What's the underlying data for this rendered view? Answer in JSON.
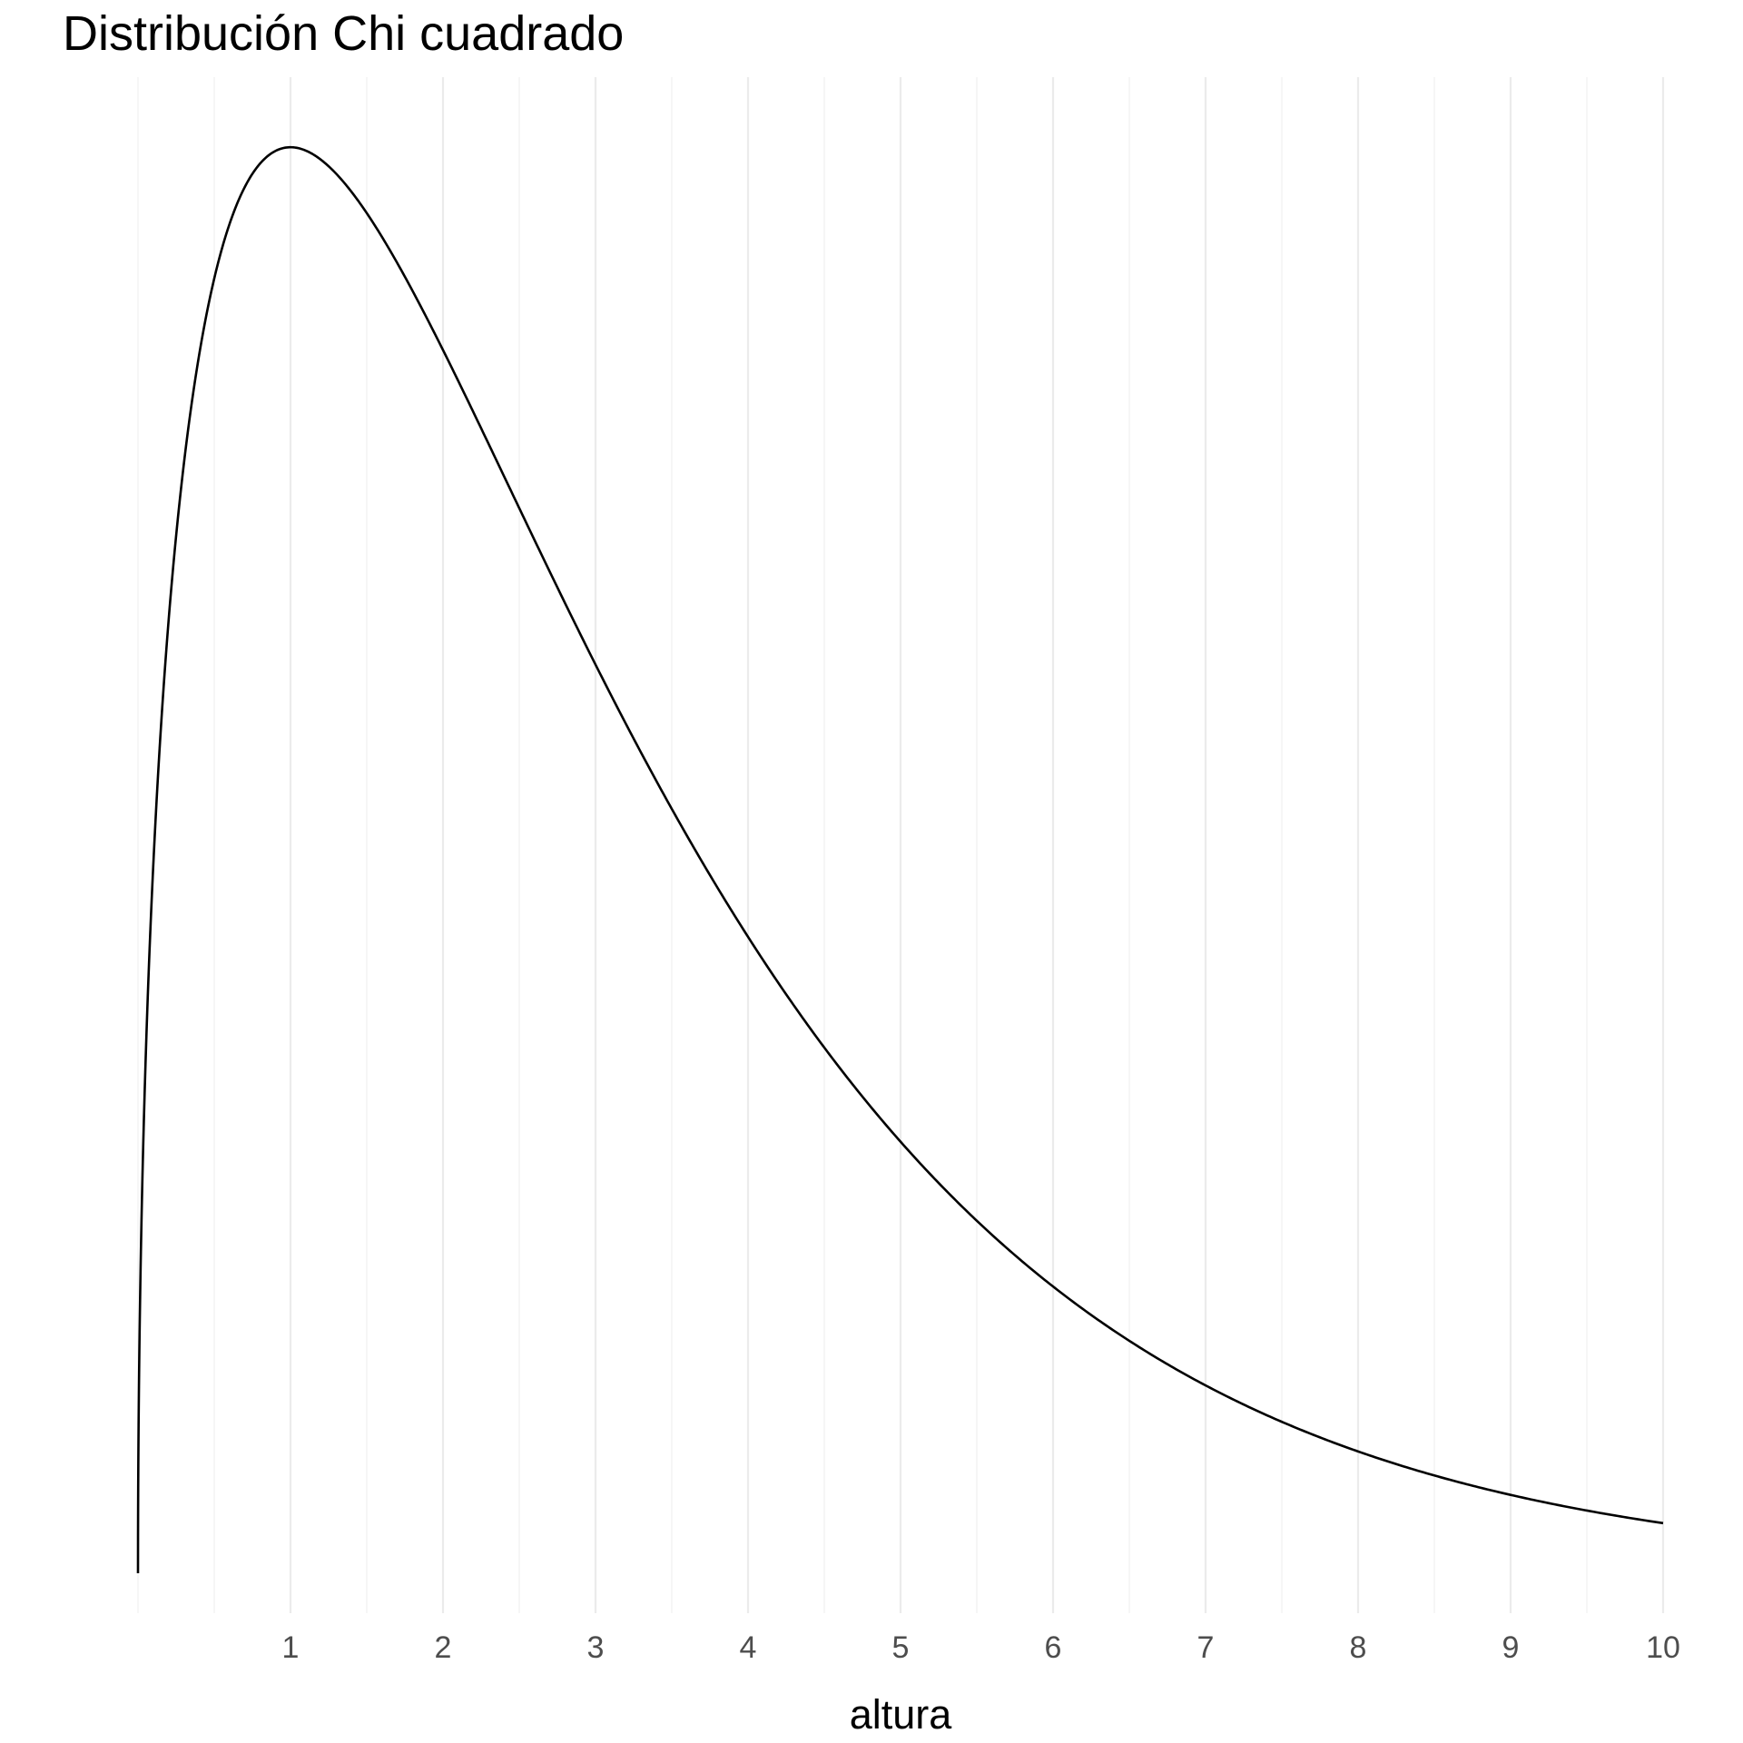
{
  "chart_data": {
    "type": "line",
    "title": "Distribución Chi cuadrado",
    "xlabel": "altura",
    "ylabel": "",
    "xlim": [
      0,
      10
    ],
    "x_ticks": [
      1,
      2,
      3,
      4,
      5,
      6,
      7,
      8,
      9,
      10
    ],
    "x_minor_ticks": [
      0,
      0.5,
      1.5,
      2.5,
      3.5,
      4.5,
      5.5,
      6.5,
      7.5,
      8.5,
      9.5
    ],
    "y_axis_shown": false,
    "grid": "vertical only",
    "legend": "none",
    "line_color": "#000000",
    "series": [
      {
        "distribution": "chi-squared",
        "degrees_of_freedom": 3,
        "x": [
          0,
          0.01,
          0.05,
          0.1,
          0.2,
          0.3,
          0.4,
          0.5,
          0.6,
          0.7,
          0.8,
          0.9,
          1.0,
          1.1,
          1.2,
          1.3,
          1.4,
          1.5,
          1.75,
          2.0,
          2.25,
          2.5,
          2.75,
          3.0,
          3.25,
          3.5,
          3.75,
          4.0,
          4.25,
          4.5,
          4.75,
          5.0,
          5.25,
          5.5,
          5.75,
          6.0,
          6.25,
          6.5,
          6.75,
          7.0,
          7.25,
          7.5,
          7.75,
          8.0,
          8.25,
          8.5,
          8.75,
          9.0,
          9.25,
          9.5,
          9.75,
          10.0
        ],
        "y": [
          0.0,
          0.0397,
          0.0874,
          0.12,
          0.1614,
          0.188,
          0.2065,
          0.2197,
          0.229,
          0.2353,
          0.2393,
          0.2414,
          0.242,
          0.2414,
          0.2398,
          0.2375,
          0.2344,
          0.2308,
          0.22,
          0.2076,
          0.1942,
          0.1804,
          0.1665,
          0.1542,
          0.1407,
          0.1287,
          0.1174,
          0.108,
          0.0971,
          0.088,
          0.0797,
          0.073,
          0.065,
          0.0587,
          0.0529,
          0.049,
          0.0429,
          0.0386,
          0.0347,
          0.031,
          0.028,
          0.0251,
          0.0225,
          0.021,
          0.0181,
          0.0162,
          0.0145,
          0.014,
          0.0116,
          0.0104,
          0.0093,
          0.0085
        ]
      }
    ]
  }
}
